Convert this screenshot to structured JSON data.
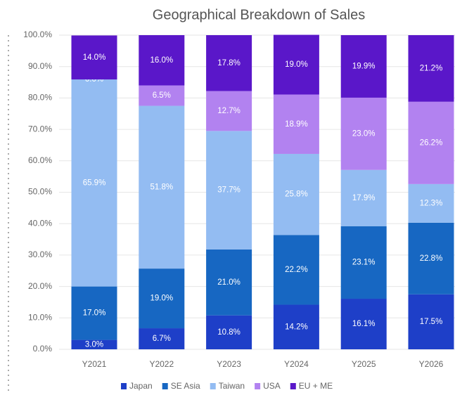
{
  "chart_data": {
    "type": "stacked_bar",
    "title": "Geographical Breakdown of Sales",
    "categories": [
      "Y2021",
      "Y2022",
      "Y2023",
      "Y2024",
      "Y2025",
      "Y2026"
    ],
    "series": [
      {
        "name": "Japan",
        "color": "#1e3fc8",
        "values": [
          3.0,
          6.7,
          10.8,
          14.2,
          16.1,
          17.5
        ],
        "value_labels": [
          "3.0%",
          "6.7%",
          "10.8%",
          "14.2%",
          "16.1%",
          "17.5%"
        ]
      },
      {
        "name": "SE Asia",
        "color": "#1767c2",
        "values": [
          17.0,
          19.0,
          21.0,
          22.2,
          23.1,
          22.8
        ],
        "value_labels": [
          "17.0%",
          "19.0%",
          "21.0%",
          "22.2%",
          "23.1%",
          "22.8%"
        ]
      },
      {
        "name": "Taiwan",
        "color": "#93bcf2",
        "values": [
          65.9,
          51.8,
          37.7,
          25.8,
          17.9,
          12.3
        ],
        "value_labels": [
          "65.9%",
          "51.8%",
          "37.7%",
          "25.8%",
          "17.9%",
          "12.3%"
        ]
      },
      {
        "name": "USA",
        "color": "#b282f0",
        "values": [
          0.0,
          6.5,
          12.7,
          18.9,
          23.0,
          26.2
        ],
        "value_labels": [
          "0.0%",
          "6.5%",
          "12.7%",
          "18.9%",
          "23.0%",
          "26.2%"
        ]
      },
      {
        "name": "EU + ME",
        "color": "#5a17c9",
        "values": [
          14.0,
          16.0,
          17.8,
          19.0,
          19.9,
          21.2
        ],
        "value_labels": [
          "14.0%",
          "16.0%",
          "17.8%",
          "19.0%",
          "19.9%",
          "21.2%"
        ]
      }
    ],
    "ylim": [
      0,
      100
    ],
    "yticks": [
      {
        "value": 0,
        "label": "0.0%"
      },
      {
        "value": 10,
        "label": "10.0%"
      },
      {
        "value": 20,
        "label": "20.0%"
      },
      {
        "value": 30,
        "label": "30.0%"
      },
      {
        "value": 40,
        "label": "40.0%"
      },
      {
        "value": 50,
        "label": "50.0%"
      },
      {
        "value": 60,
        "label": "60.0%"
      },
      {
        "value": 70,
        "label": "70.0%"
      },
      {
        "value": 80,
        "label": "80.0%"
      },
      {
        "value": 90,
        "label": "90.0%"
      },
      {
        "value": 100,
        "label": "100.0%"
      }
    ],
    "legend": "bottom"
  }
}
